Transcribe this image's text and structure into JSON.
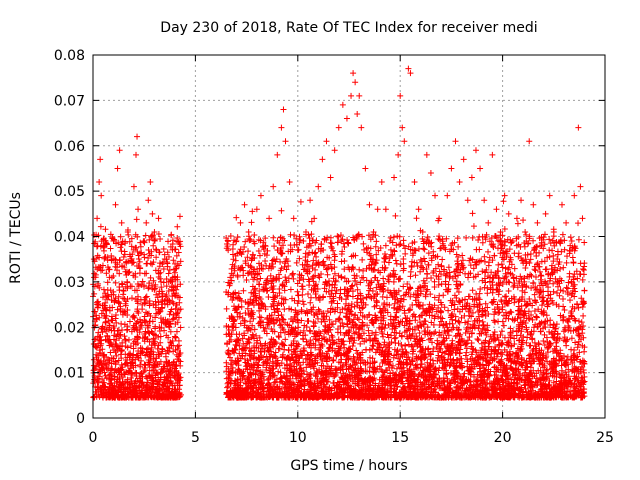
{
  "chart_data": {
    "type": "scatter",
    "title": "Day 230 of 2018, Rate Of TEC Index for receiver medi",
    "xlabel": "GPS time / hours",
    "ylabel": "ROTI / TECUs",
    "xlim": [
      0,
      25
    ],
    "ylim": [
      0,
      0.08
    ],
    "x_ticks": [
      0,
      5,
      10,
      15,
      20,
      25
    ],
    "y_ticks": [
      0,
      0.01,
      0.02,
      0.03,
      0.04,
      0.05,
      0.06,
      0.07,
      0.08
    ],
    "x_tick_labels": [
      "0",
      "5",
      "10",
      "15",
      "20",
      "25"
    ],
    "y_tick_labels": [
      "0",
      "0.01",
      "0.02",
      "0.03",
      "0.04",
      "0.05",
      "0.06",
      "0.07",
      "0.08"
    ],
    "grid": true,
    "marker": "+",
    "color": "#ff0000",
    "data_gap_hours": [
      4.3,
      6.5
    ],
    "series": [
      {
        "points": [
          [
            0.05,
            0.031
          ],
          [
            0.1,
            0.011
          ],
          [
            0.2,
            0.044
          ],
          [
            0.3,
            0.052
          ],
          [
            0.35,
            0.057
          ],
          [
            0.4,
            0.049
          ],
          [
            0.5,
            0.038
          ],
          [
            0.6,
            0.021
          ],
          [
            0.7,
            0.018
          ],
          [
            0.8,
            0.031
          ],
          [
            0.9,
            0.026
          ],
          [
            1.0,
            0.039
          ],
          [
            1.1,
            0.047
          ],
          [
            1.2,
            0.055
          ],
          [
            1.3,
            0.059
          ],
          [
            1.4,
            0.043
          ],
          [
            1.5,
            0.028
          ],
          [
            1.6,
            0.017
          ],
          [
            1.7,
            0.041
          ],
          [
            1.8,
            0.036
          ],
          [
            1.9,
            0.029
          ],
          [
            2.0,
            0.051
          ],
          [
            2.1,
            0.058
          ],
          [
            2.15,
            0.062
          ],
          [
            2.2,
            0.046
          ],
          [
            2.3,
            0.033
          ],
          [
            2.4,
            0.024
          ],
          [
            2.5,
            0.039
          ],
          [
            2.6,
            0.043
          ],
          [
            2.7,
            0.048
          ],
          [
            2.8,
            0.052
          ],
          [
            2.9,
            0.045
          ],
          [
            3.0,
            0.041
          ],
          [
            3.1,
            0.037
          ],
          [
            3.2,
            0.044
          ],
          [
            3.3,
            0.032
          ],
          [
            3.4,
            0.026
          ],
          [
            3.5,
            0.036
          ],
          [
            3.6,
            0.021
          ],
          [
            3.7,
            0.028
          ],
          [
            3.8,
            0.019
          ],
          [
            3.9,
            0.031
          ],
          [
            4.0,
            0.027
          ],
          [
            4.1,
            0.023
          ],
          [
            4.2,
            0.016
          ],
          [
            6.6,
            0.037
          ],
          [
            6.7,
            0.031
          ],
          [
            6.8,
            0.026
          ],
          [
            6.9,
            0.033
          ],
          [
            7.0,
            0.039
          ],
          [
            7.2,
            0.043
          ],
          [
            7.4,
            0.047
          ],
          [
            7.6,
            0.041
          ],
          [
            7.8,
            0.036
          ],
          [
            8.0,
            0.046
          ],
          [
            8.2,
            0.049
          ],
          [
            8.4,
            0.038
          ],
          [
            8.6,
            0.044
          ],
          [
            8.8,
            0.051
          ],
          [
            9.0,
            0.058
          ],
          [
            9.2,
            0.064
          ],
          [
            9.3,
            0.068
          ],
          [
            9.4,
            0.061
          ],
          [
            9.6,
            0.052
          ],
          [
            9.8,
            0.044
          ],
          [
            10.0,
            0.037
          ],
          [
            10.2,
            0.029
          ],
          [
            10.4,
            0.041
          ],
          [
            10.6,
            0.048
          ],
          [
            10.8,
            0.044
          ],
          [
            11.0,
            0.051
          ],
          [
            11.2,
            0.057
          ],
          [
            11.4,
            0.061
          ],
          [
            11.6,
            0.053
          ],
          [
            11.8,
            0.059
          ],
          [
            12.0,
            0.064
          ],
          [
            12.2,
            0.069
          ],
          [
            12.4,
            0.066
          ],
          [
            12.6,
            0.071
          ],
          [
            12.7,
            0.076
          ],
          [
            12.8,
            0.074
          ],
          [
            12.9,
            0.067
          ],
          [
            13.0,
            0.071
          ],
          [
            13.1,
            0.064
          ],
          [
            13.3,
            0.055
          ],
          [
            13.5,
            0.047
          ],
          [
            13.7,
            0.041
          ],
          [
            13.9,
            0.046
          ],
          [
            14.1,
            0.052
          ],
          [
            14.3,
            0.046
          ],
          [
            14.5,
            0.039
          ],
          [
            14.7,
            0.053
          ],
          [
            14.9,
            0.058
          ],
          [
            15.0,
            0.071
          ],
          [
            15.1,
            0.064
          ],
          [
            15.2,
            0.061
          ],
          [
            15.4,
            0.077
          ],
          [
            15.5,
            0.076
          ],
          [
            15.7,
            0.052
          ],
          [
            15.9,
            0.046
          ],
          [
            16.1,
            0.041
          ],
          [
            16.3,
            0.058
          ],
          [
            16.5,
            0.054
          ],
          [
            16.7,
            0.049
          ],
          [
            16.9,
            0.044
          ],
          [
            17.1,
            0.038
          ],
          [
            17.3,
            0.049
          ],
          [
            17.5,
            0.055
          ],
          [
            17.7,
            0.061
          ],
          [
            17.9,
            0.052
          ],
          [
            18.1,
            0.057
          ],
          [
            18.3,
            0.048
          ],
          [
            18.5,
            0.053
          ],
          [
            18.7,
            0.059
          ],
          [
            18.9,
            0.055
          ],
          [
            19.1,
            0.048
          ],
          [
            19.3,
            0.043
          ],
          [
            19.5,
            0.058
          ],
          [
            19.7,
            0.046
          ],
          [
            19.9,
            0.041
          ],
          [
            20.1,
            0.049
          ],
          [
            20.3,
            0.045
          ],
          [
            20.5,
            0.039
          ],
          [
            20.7,
            0.044
          ],
          [
            20.9,
            0.048
          ],
          [
            21.1,
            0.041
          ],
          [
            21.3,
            0.061
          ],
          [
            21.5,
            0.047
          ],
          [
            21.7,
            0.043
          ],
          [
            21.9,
            0.038
          ],
          [
            22.1,
            0.045
          ],
          [
            22.3,
            0.049
          ],
          [
            22.5,
            0.041
          ],
          [
            22.7,
            0.036
          ],
          [
            22.9,
            0.047
          ],
          [
            23.1,
            0.043
          ],
          [
            23.3,
            0.038
          ],
          [
            23.5,
            0.049
          ],
          [
            23.7,
            0.064
          ],
          [
            23.8,
            0.051
          ],
          [
            23.9,
            0.044
          ]
        ]
      }
    ]
  }
}
